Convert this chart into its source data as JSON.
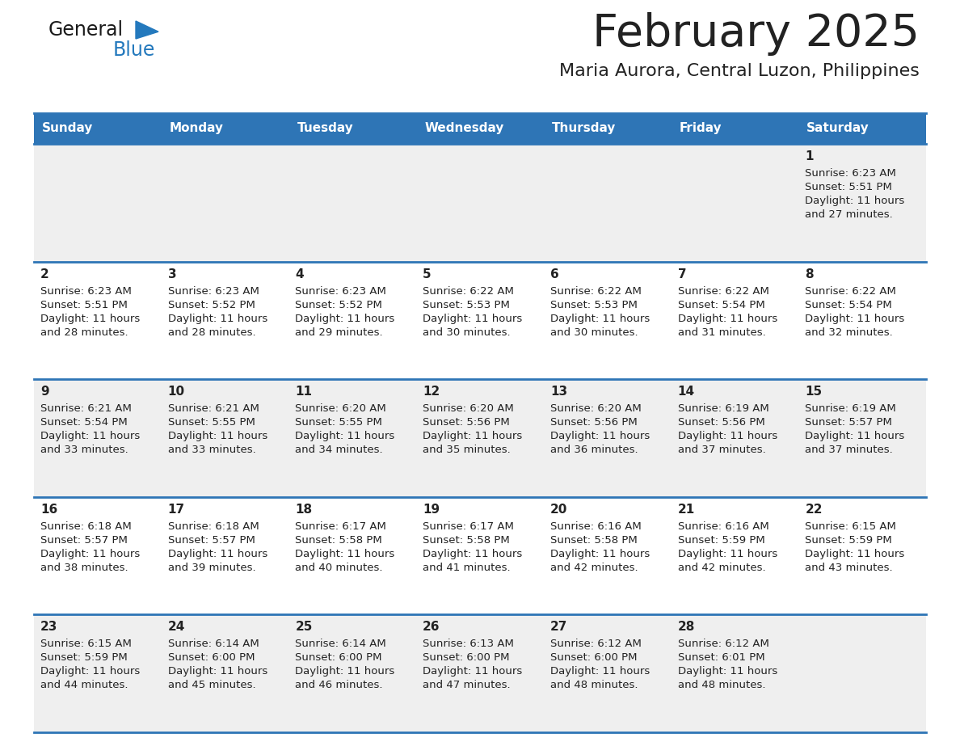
{
  "title": "February 2025",
  "subtitle": "Maria Aurora, Central Luzon, Philippines",
  "header_bg_color": "#2E75B6",
  "header_text_color": "#FFFFFF",
  "row_bg_color_odd": "#EFEFEF",
  "row_bg_color_even": "#FFFFFF",
  "border_color": "#2E75B6",
  "text_color": "#222222",
  "days_of_week": [
    "Sunday",
    "Monday",
    "Tuesday",
    "Wednesday",
    "Thursday",
    "Friday",
    "Saturday"
  ],
  "logo_general_color": "#1a1a1a",
  "logo_blue_color": "#2479BD",
  "calendar_data": [
    [
      null,
      null,
      null,
      null,
      null,
      null,
      1
    ],
    [
      2,
      3,
      4,
      5,
      6,
      7,
      8
    ],
    [
      9,
      10,
      11,
      12,
      13,
      14,
      15
    ],
    [
      16,
      17,
      18,
      19,
      20,
      21,
      22
    ],
    [
      23,
      24,
      25,
      26,
      27,
      28,
      null
    ]
  ],
  "cell_data": {
    "1": {
      "sunrise": "6:23 AM",
      "sunset": "5:51 PM",
      "daylight": "11 hours and 27 minutes."
    },
    "2": {
      "sunrise": "6:23 AM",
      "sunset": "5:51 PM",
      "daylight": "11 hours and 28 minutes."
    },
    "3": {
      "sunrise": "6:23 AM",
      "sunset": "5:52 PM",
      "daylight": "11 hours and 28 minutes."
    },
    "4": {
      "sunrise": "6:23 AM",
      "sunset": "5:52 PM",
      "daylight": "11 hours and 29 minutes."
    },
    "5": {
      "sunrise": "6:22 AM",
      "sunset": "5:53 PM",
      "daylight": "11 hours and 30 minutes."
    },
    "6": {
      "sunrise": "6:22 AM",
      "sunset": "5:53 PM",
      "daylight": "11 hours and 30 minutes."
    },
    "7": {
      "sunrise": "6:22 AM",
      "sunset": "5:54 PM",
      "daylight": "11 hours and 31 minutes."
    },
    "8": {
      "sunrise": "6:22 AM",
      "sunset": "5:54 PM",
      "daylight": "11 hours and 32 minutes."
    },
    "9": {
      "sunrise": "6:21 AM",
      "sunset": "5:54 PM",
      "daylight": "11 hours and 33 minutes."
    },
    "10": {
      "sunrise": "6:21 AM",
      "sunset": "5:55 PM",
      "daylight": "11 hours and 33 minutes."
    },
    "11": {
      "sunrise": "6:20 AM",
      "sunset": "5:55 PM",
      "daylight": "11 hours and 34 minutes."
    },
    "12": {
      "sunrise": "6:20 AM",
      "sunset": "5:56 PM",
      "daylight": "11 hours and 35 minutes."
    },
    "13": {
      "sunrise": "6:20 AM",
      "sunset": "5:56 PM",
      "daylight": "11 hours and 36 minutes."
    },
    "14": {
      "sunrise": "6:19 AM",
      "sunset": "5:56 PM",
      "daylight": "11 hours and 37 minutes."
    },
    "15": {
      "sunrise": "6:19 AM",
      "sunset": "5:57 PM",
      "daylight": "11 hours and 37 minutes."
    },
    "16": {
      "sunrise": "6:18 AM",
      "sunset": "5:57 PM",
      "daylight": "11 hours and 38 minutes."
    },
    "17": {
      "sunrise": "6:18 AM",
      "sunset": "5:57 PM",
      "daylight": "11 hours and 39 minutes."
    },
    "18": {
      "sunrise": "6:17 AM",
      "sunset": "5:58 PM",
      "daylight": "11 hours and 40 minutes."
    },
    "19": {
      "sunrise": "6:17 AM",
      "sunset": "5:58 PM",
      "daylight": "11 hours and 41 minutes."
    },
    "20": {
      "sunrise": "6:16 AM",
      "sunset": "5:58 PM",
      "daylight": "11 hours and 42 minutes."
    },
    "21": {
      "sunrise": "6:16 AM",
      "sunset": "5:59 PM",
      "daylight": "11 hours and 42 minutes."
    },
    "22": {
      "sunrise": "6:15 AM",
      "sunset": "5:59 PM",
      "daylight": "11 hours and 43 minutes."
    },
    "23": {
      "sunrise": "6:15 AM",
      "sunset": "5:59 PM",
      "daylight": "11 hours and 44 minutes."
    },
    "24": {
      "sunrise": "6:14 AM",
      "sunset": "6:00 PM",
      "daylight": "11 hours and 45 minutes."
    },
    "25": {
      "sunrise": "6:14 AM",
      "sunset": "6:00 PM",
      "daylight": "11 hours and 46 minutes."
    },
    "26": {
      "sunrise": "6:13 AM",
      "sunset": "6:00 PM",
      "daylight": "11 hours and 47 minutes."
    },
    "27": {
      "sunrise": "6:12 AM",
      "sunset": "6:00 PM",
      "daylight": "11 hours and 48 minutes."
    },
    "28": {
      "sunrise": "6:12 AM",
      "sunset": "6:01 PM",
      "daylight": "11 hours and 48 minutes."
    }
  },
  "figsize": [
    11.88,
    9.18
  ],
  "dpi": 100
}
